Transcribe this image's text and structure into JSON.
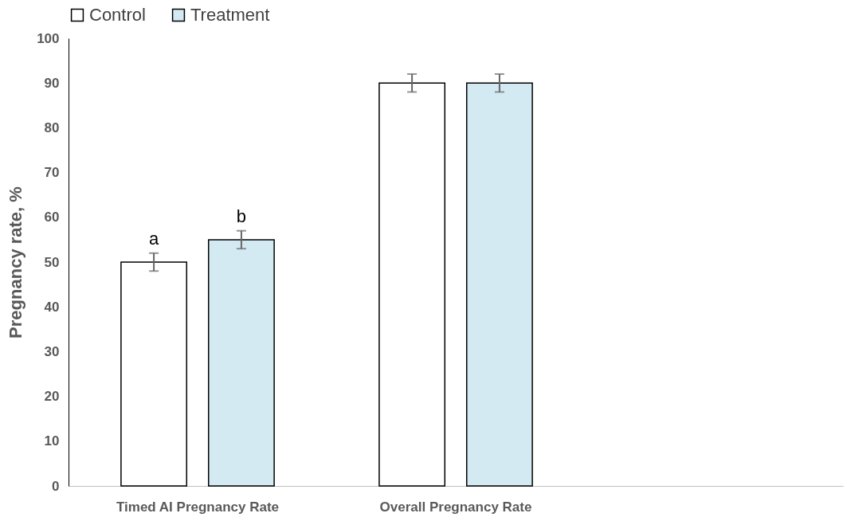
{
  "chart_data": {
    "type": "bar",
    "ylabel": "Pregnancy rate, %",
    "categories": [
      "Timed AI Pregnancy Rate",
      "Overall Pregnancy Rate",
      null
    ],
    "series": [
      {
        "name": "Control",
        "color": "#ffffff",
        "values": [
          50,
          90,
          null
        ],
        "errors": [
          2,
          2,
          null
        ],
        "value_labels": [
          "a",
          null,
          null
        ]
      },
      {
        "name": "Treatment",
        "color": "#d4eaf3",
        "values": [
          55,
          90,
          null
        ],
        "errors": [
          2,
          2,
          null
        ],
        "value_labels": [
          "b",
          null,
          null
        ]
      }
    ],
    "ylim": [
      0,
      100
    ],
    "yticks": [
      0,
      10,
      20,
      30,
      40,
      50,
      60,
      70,
      80,
      90,
      100
    ],
    "grid": false,
    "legend": "top"
  }
}
